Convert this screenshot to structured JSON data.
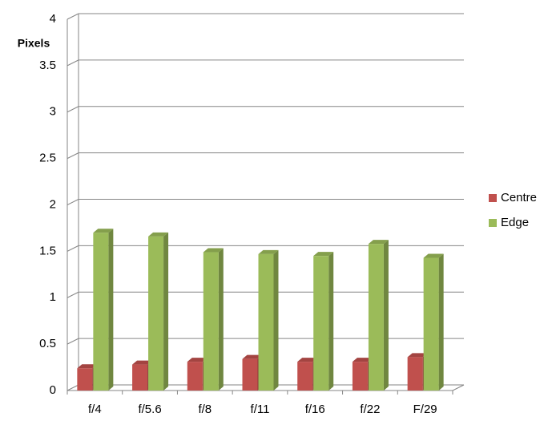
{
  "chart_data": {
    "type": "bar3d",
    "y_label": "Pixels",
    "categories": [
      "f/4",
      "f/5.6",
      "f/8",
      "f/11",
      "f/16",
      "f/22",
      "F/29"
    ],
    "series": [
      {
        "name": "Centre",
        "color": "#c0504d",
        "values": [
          0.24,
          0.28,
          0.31,
          0.34,
          0.31,
          0.31,
          0.36
        ]
      },
      {
        "name": "Edge",
        "color": "#9bbb59",
        "values": [
          1.7,
          1.66,
          1.49,
          1.47,
          1.45,
          1.58,
          1.43
        ]
      }
    ],
    "ylim": [
      0,
      4
    ],
    "yticks": [
      0,
      0.5,
      1,
      1.5,
      2,
      2.5,
      3,
      3.5,
      4
    ],
    "grid": true,
    "legend": "right"
  }
}
